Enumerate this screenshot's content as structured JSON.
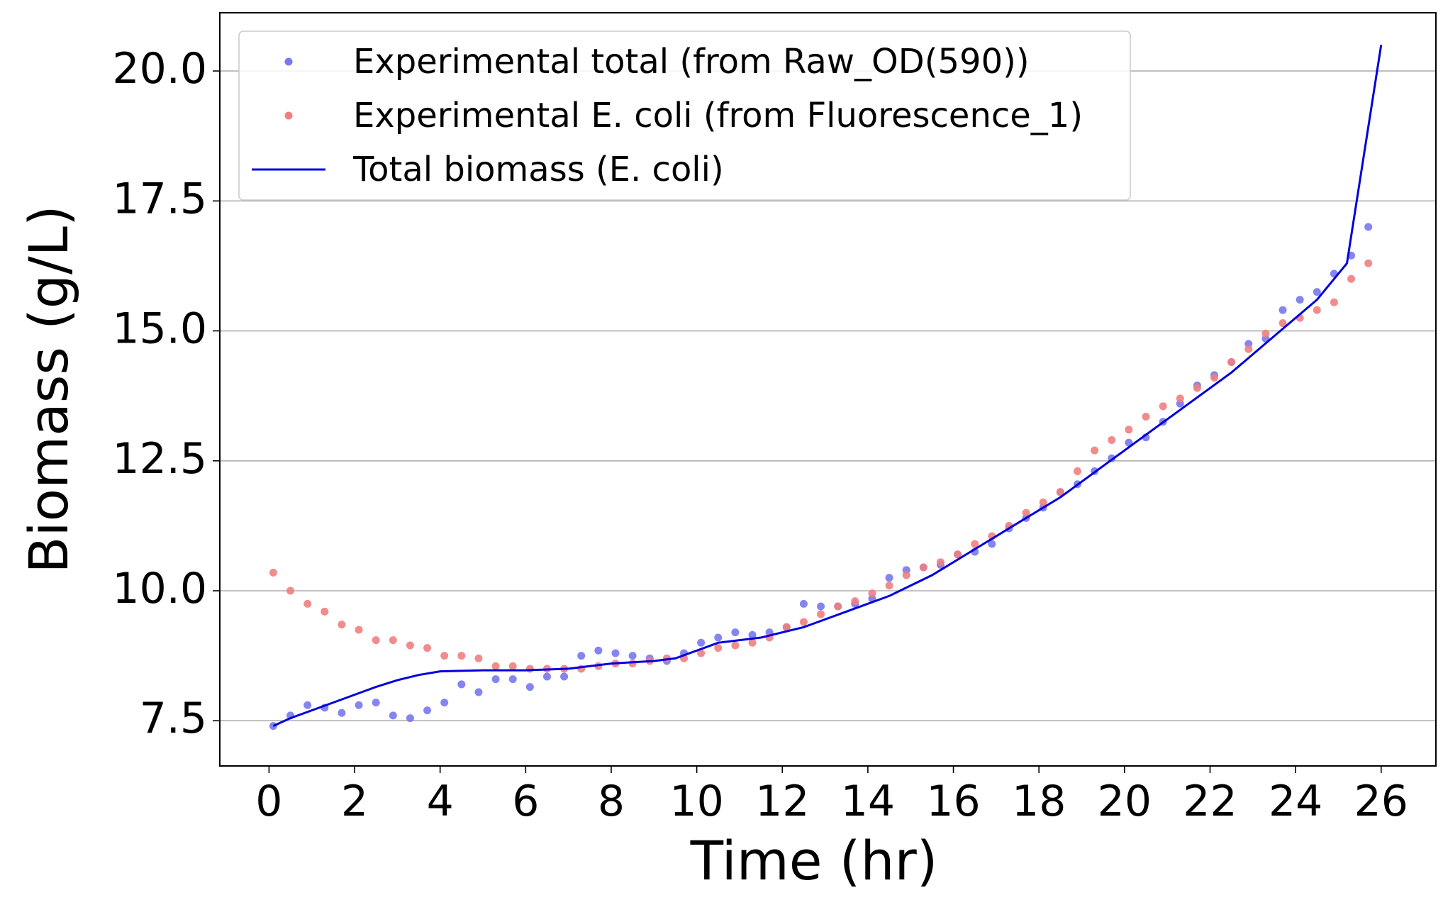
{
  "chart_data": {
    "type": "scatter-line",
    "xlabel": "Time (hr)",
    "ylabel": "Biomass (g/L)",
    "xlim": [
      -1.15,
      27.28
    ],
    "ylim": [
      6.63,
      21.12
    ],
    "xticks": [
      0,
      2,
      4,
      6,
      8,
      10,
      12,
      14,
      16,
      18,
      20,
      22,
      24,
      26
    ],
    "yticks": [
      {
        "value": 7.5,
        "label": "7.5"
      },
      {
        "value": 10,
        "label": "10.0"
      },
      {
        "value": 12.5,
        "label": "12.5"
      },
      {
        "value": 15,
        "label": "15.0"
      },
      {
        "value": 17.5,
        "label": "17.5"
      },
      {
        "value": 20,
        "label": "20.0"
      }
    ],
    "grid": "y",
    "legend": "upper left",
    "series": [
      {
        "name": "Experimental total (from Raw_OD(590))",
        "kind": "scatter",
        "color": "#7878f0",
        "x": [
          0.1,
          0.5,
          0.9,
          1.3,
          1.7,
          2.1,
          2.5,
          2.9,
          3.3,
          3.7,
          4.1,
          4.5,
          4.9,
          5.3,
          5.7,
          6.1,
          6.5,
          6.9,
          7.3,
          7.7,
          8.1,
          8.5,
          8.9,
          9.3,
          9.7,
          10.1,
          10.5,
          10.9,
          11.3,
          11.7,
          12.1,
          12.5,
          12.9,
          13.3,
          13.7,
          14.1,
          14.5,
          14.9,
          15.3,
          15.7,
          16.1,
          16.5,
          16.9,
          17.3,
          17.7,
          18.1,
          18.5,
          18.9,
          19.3,
          19.7,
          20.1,
          20.5,
          20.9,
          21.3,
          21.7,
          22.1,
          22.5,
          22.9,
          23.3,
          23.7,
          24.1,
          24.5,
          24.9,
          25.3,
          25.7
        ],
        "values": [
          7.4,
          7.6,
          7.8,
          7.75,
          7.65,
          7.8,
          7.85,
          7.6,
          7.55,
          7.7,
          7.85,
          8.2,
          8.05,
          8.3,
          8.3,
          8.15,
          8.35,
          8.35,
          8.75,
          8.85,
          8.8,
          8.75,
          8.7,
          8.65,
          8.8,
          9.0,
          9.1,
          9.2,
          9.15,
          9.2,
          9.3,
          9.75,
          9.7,
          9.7,
          9.75,
          9.85,
          10.25,
          10.4,
          10.45,
          10.5,
          10.7,
          10.75,
          10.9,
          11.2,
          11.4,
          11.6,
          11.9,
          12.05,
          12.3,
          12.55,
          12.85,
          12.95,
          13.25,
          13.6,
          13.95,
          14.15,
          14.4,
          14.75,
          14.85,
          15.4,
          15.6,
          15.75,
          16.1,
          16.45,
          17.0
        ]
      },
      {
        "name": "Experimental E. coli (from Fluorescence_1)",
        "kind": "scatter",
        "color": "#f08080",
        "x": [
          0.1,
          0.5,
          0.9,
          1.3,
          1.7,
          2.1,
          2.5,
          2.9,
          3.3,
          3.7,
          4.1,
          4.5,
          4.9,
          5.3,
          5.7,
          6.1,
          6.5,
          6.9,
          7.3,
          7.7,
          8.1,
          8.5,
          8.9,
          9.3,
          9.7,
          10.1,
          10.5,
          10.9,
          11.3,
          11.7,
          12.1,
          12.5,
          12.9,
          13.3,
          13.7,
          14.1,
          14.5,
          14.9,
          15.3,
          15.7,
          16.1,
          16.5,
          16.9,
          17.3,
          17.7,
          18.1,
          18.5,
          18.9,
          19.3,
          19.7,
          20.1,
          20.5,
          20.9,
          21.3,
          21.7,
          22.1,
          22.5,
          22.9,
          23.3,
          23.7,
          24.1,
          24.5,
          24.9,
          25.3,
          25.7
        ],
        "values": [
          10.35,
          10.0,
          9.75,
          9.6,
          9.35,
          9.25,
          9.05,
          9.05,
          8.95,
          8.9,
          8.75,
          8.75,
          8.7,
          8.55,
          8.55,
          8.5,
          8.5,
          8.5,
          8.5,
          8.55,
          8.6,
          8.6,
          8.65,
          8.7,
          8.7,
          8.8,
          8.9,
          8.95,
          9.0,
          9.1,
          9.3,
          9.4,
          9.55,
          9.7,
          9.8,
          9.95,
          10.1,
          10.3,
          10.45,
          10.55,
          10.7,
          10.9,
          11.05,
          11.25,
          11.5,
          11.7,
          11.9,
          12.3,
          12.7,
          12.9,
          13.1,
          13.35,
          13.55,
          13.7,
          13.9,
          14.1,
          14.4,
          14.65,
          14.95,
          15.15,
          15.25,
          15.4,
          15.55,
          16.0,
          16.3
        ]
      },
      {
        "name": "Total biomass (E. coli)",
        "kind": "line",
        "color": "#0000dd",
        "x": [
          0.1,
          0.5,
          1,
          1.5,
          2,
          2.5,
          3,
          3.5,
          4,
          5,
          6,
          7,
          8,
          9,
          9.5,
          10.5,
          11.5,
          12.5,
          13.5,
          14.5,
          15.5,
          16.5,
          17.5,
          18.5,
          19.5,
          20.5,
          21.5,
          22.5,
          23.5,
          24.5,
          25.2,
          26
        ],
        "values": [
          7.4,
          7.55,
          7.7,
          7.85,
          8.0,
          8.15,
          8.28,
          8.38,
          8.45,
          8.47,
          8.47,
          8.5,
          8.6,
          8.65,
          8.7,
          9.0,
          9.1,
          9.3,
          9.6,
          9.9,
          10.3,
          10.8,
          11.3,
          11.8,
          12.4,
          13.0,
          13.6,
          14.2,
          14.9,
          15.6,
          16.3,
          20.5
        ]
      }
    ]
  }
}
